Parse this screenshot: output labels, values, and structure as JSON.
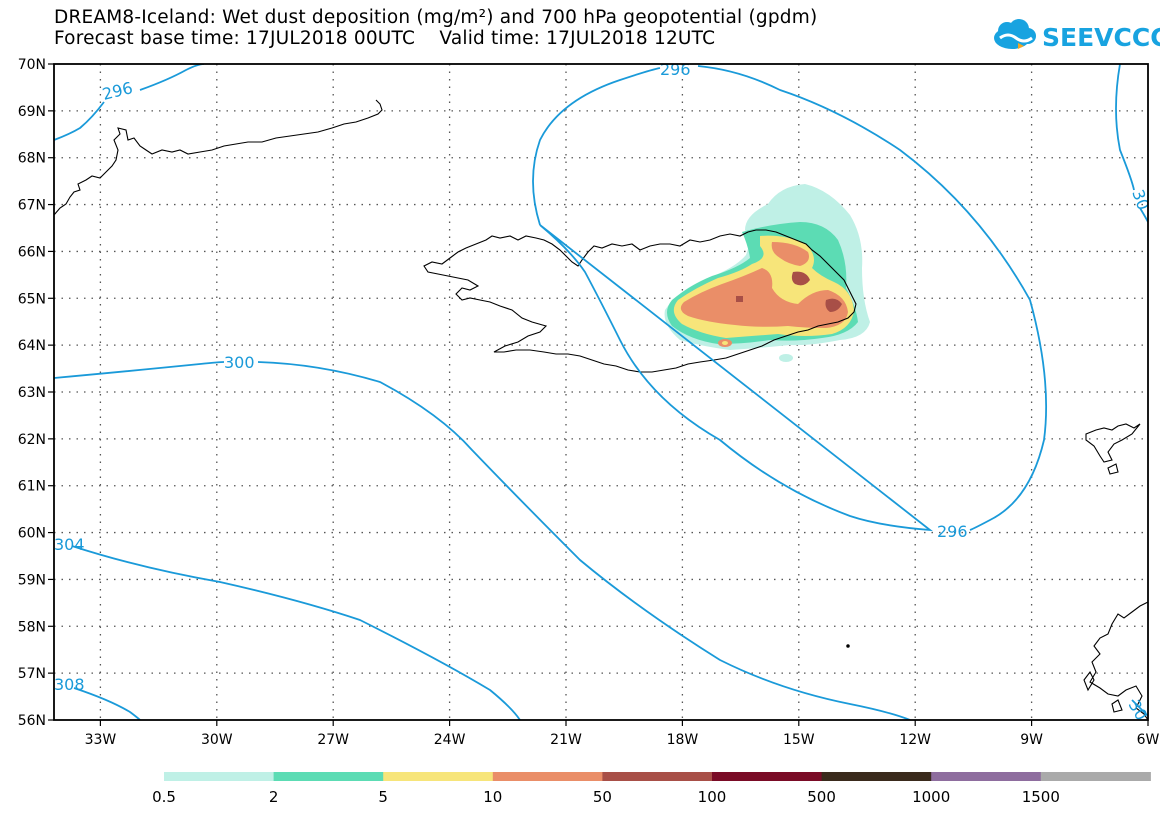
{
  "title_line1": "DREAM8-Iceland: Wet dust deposition (mg/m²) and 700 hPa geopotential (gpdm)",
  "title_line2": "Forecast base time: 17JUL2018 00UTC    Valid time: 17JUL2018 12UTC",
  "logo_text": "SEEVCCC",
  "lat_labels": [
    "70N",
    "69N",
    "68N",
    "67N",
    "66N",
    "65N",
    "64N",
    "63N",
    "62N",
    "61N",
    "60N",
    "59N",
    "58N",
    "57N",
    "56N"
  ],
  "lon_labels": [
    "33W",
    "30W",
    "27W",
    "24W",
    "21W",
    "18W",
    "15W",
    "12W",
    "9W",
    "6W"
  ],
  "contour_labels": [
    "296",
    "296",
    "296",
    "300",
    "304",
    "308",
    "30",
    "30"
  ],
  "legend": {
    "colors": [
      "#bff0e6",
      "#5cdcb4",
      "#f7e57a",
      "#ea8e68",
      "#a84f47",
      "#7a0b26",
      "#3a2a1c",
      "#8e6d9e",
      "#aaaaaa"
    ],
    "labels": [
      "0.5",
      "2",
      "5",
      "10",
      "50",
      "100",
      "500",
      "1000",
      "1500"
    ]
  },
  "colors": {
    "contour": "#1a9ad9",
    "coast": "#000000",
    "grid": "#444444"
  }
}
